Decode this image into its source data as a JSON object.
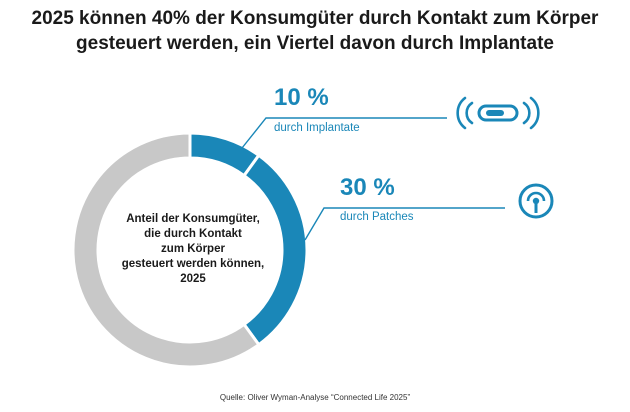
{
  "title": {
    "line1": "2025 können 40% der Konsumgüter durch Kontakt zum Körper",
    "line2": "gesteuert werden, ein Viertel davon durch Implantate"
  },
  "center_label": {
    "lines": [
      "Anteil der Konsumgüter,",
      "die durch Kontakt",
      "zum Körper",
      "gesteuert werden können,",
      "2025"
    ]
  },
  "source": "Quelle: Oliver Wyman-Analyse “Connected Life 2025”",
  "colors": {
    "accent": "#1a87b8",
    "rest": "#c8c8c8"
  },
  "icons": [
    "implant-capsule-icon",
    "patch-signal-icon"
  ],
  "chart_data": {
    "type": "pie",
    "donut": true,
    "slices": [
      {
        "label": "durch Implantate",
        "value_label": "10 %",
        "value": 10,
        "color": "#1a87b8"
      },
      {
        "label": "durch Patches",
        "value_label": "30 %",
        "value": 30,
        "color": "#1a87b8"
      },
      {
        "value": 60,
        "color": "#c8c8c8"
      }
    ]
  }
}
